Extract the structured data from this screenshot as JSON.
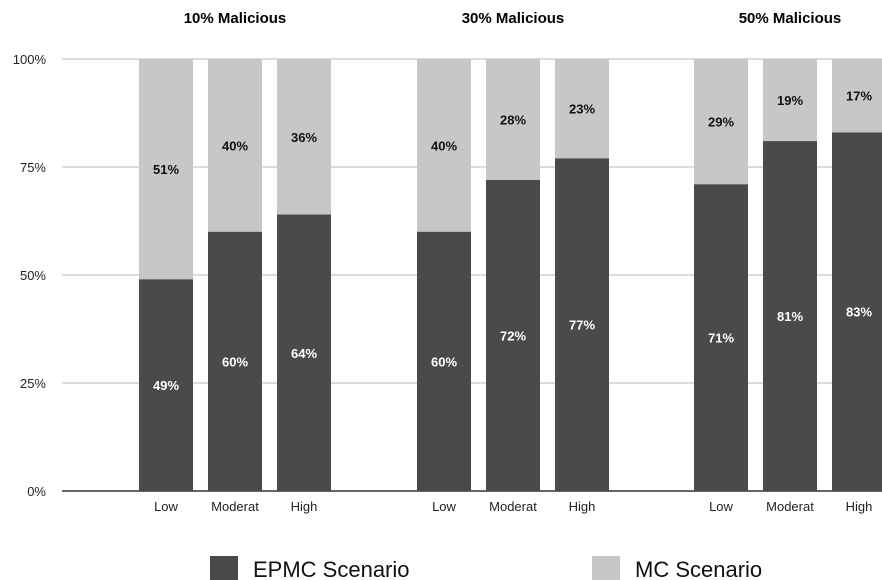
{
  "chart_data": {
    "type": "bar",
    "stacked": true,
    "percent": true,
    "ylim": [
      0,
      100
    ],
    "yticks": [
      "0%",
      "25%",
      "50%",
      "75%",
      "100%"
    ],
    "grid": "horizontal",
    "legend_position": "bottom",
    "colors": {
      "EPMC": "#4a4a4a",
      "MC": "#c7c7c7"
    },
    "groups": [
      {
        "title": "10% Malicious",
        "categories": [
          "Low",
          "Moderat",
          "High"
        ],
        "series": [
          {
            "name": "EPMC Scenario",
            "values": [
              49,
              60,
              64
            ],
            "labels": [
              "49%",
              "60%",
              "64%"
            ]
          },
          {
            "name": "MC Scenario",
            "values": [
              51,
              40,
              36
            ],
            "labels": [
              "51%",
              "40%",
              "36%"
            ]
          }
        ]
      },
      {
        "title": "30% Malicious",
        "categories": [
          "Low",
          "Moderat",
          "High"
        ],
        "series": [
          {
            "name": "EPMC Scenario",
            "values": [
              60,
              72,
              77
            ],
            "labels": [
              "60%",
              "72%",
              "77%"
            ]
          },
          {
            "name": "MC Scenario",
            "values": [
              40,
              28,
              23
            ],
            "labels": [
              "40%",
              "28%",
              "23%"
            ]
          }
        ]
      },
      {
        "title": "50% Malicious",
        "categories": [
          "Low",
          "Moderat",
          "High"
        ],
        "series": [
          {
            "name": "EPMC Scenario",
            "values": [
              71,
              81,
              83
            ],
            "labels": [
              "71%",
              "81%",
              "83%"
            ]
          },
          {
            "name": "MC Scenario",
            "values": [
              29,
              19,
              17
            ],
            "labels": [
              "29%",
              "19%",
              "17%"
            ]
          }
        ]
      }
    ],
    "legend": [
      "EPMC Scenario",
      "MC Scenario"
    ]
  }
}
